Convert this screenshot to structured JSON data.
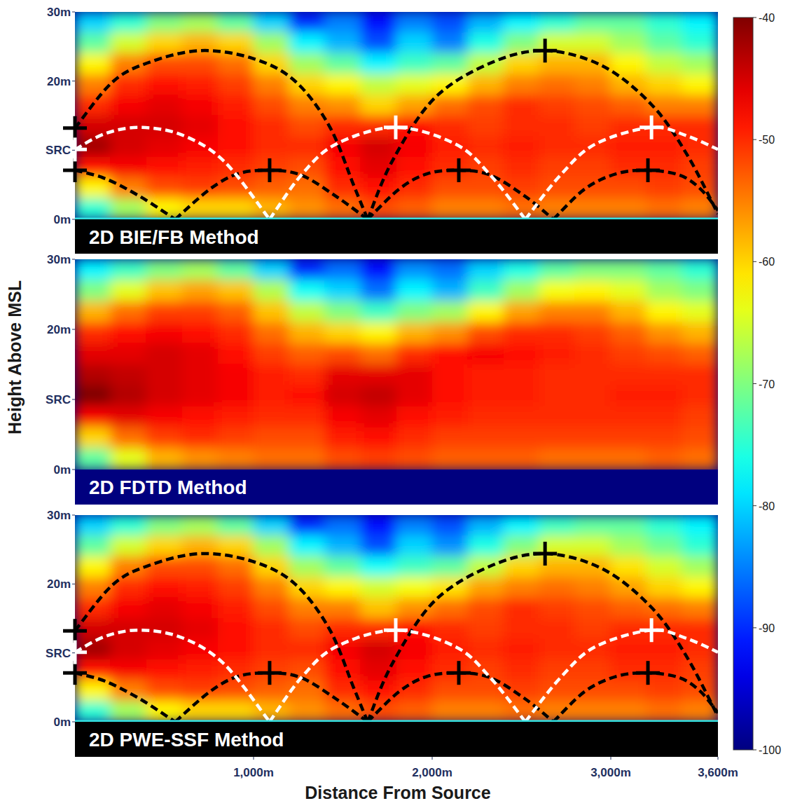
{
  "chart_data": [
    {
      "type": "heatmap",
      "title": "2D BIE/FB Method",
      "xlim": [
        0,
        3600
      ],
      "ylim": [
        0,
        30
      ],
      "tick_labels": "y",
      "yticks": [
        {
          "value": 0,
          "label": "0m"
        },
        {
          "value": 10,
          "label": "SRC"
        },
        {
          "value": 20,
          "label": "20m"
        },
        {
          "value": 30,
          "label": "30m"
        }
      ],
      "x": [
        100,
        300,
        500,
        700,
        900,
        1100,
        1300,
        1500,
        1700,
        1900,
        2100,
        2300,
        2500,
        2700,
        2900,
        3100,
        3300,
        3500
      ],
      "y": [
        28.5,
        25.5,
        22.5,
        19.5,
        16.5,
        13.5,
        10.5,
        7.5,
        4.5,
        1.5
      ],
      "cells": [
        [
          -80,
          -75,
          -70,
          -68,
          -72,
          -80,
          -90,
          -85,
          -92,
          -85,
          -88,
          -82,
          -78,
          -75,
          -72,
          -72,
          -75,
          -78
        ],
        [
          -72,
          -65,
          -60,
          -58,
          -60,
          -68,
          -78,
          -82,
          -88,
          -80,
          -85,
          -76,
          -70,
          -65,
          -65,
          -68,
          -72,
          -75
        ],
        [
          -62,
          -55,
          -52,
          -52,
          -54,
          -60,
          -68,
          -72,
          -78,
          -74,
          -72,
          -66,
          -60,
          -58,
          -58,
          -62,
          -66,
          -68
        ],
        [
          -55,
          -50,
          -48,
          -49,
          -51,
          -55,
          -60,
          -62,
          -66,
          -64,
          -62,
          -58,
          -55,
          -54,
          -55,
          -58,
          -60,
          -62
        ],
        [
          -50,
          -47,
          -46,
          -47,
          -49,
          -52,
          -55,
          -56,
          -60,
          -57,
          -54,
          -52,
          -50,
          -51,
          -52,
          -53,
          -55,
          -55
        ],
        [
          -45,
          -45,
          -45,
          -46,
          -48,
          -50,
          -52,
          -50,
          -50,
          -48,
          -50,
          -51,
          -50,
          -50,
          -51,
          -50,
          -50,
          -50
        ],
        [
          -42,
          -45,
          -46,
          -47,
          -48,
          -50,
          -50,
          -47,
          -45,
          -47,
          -49,
          -50,
          -49,
          -50,
          -50,
          -49,
          -49,
          -50
        ],
        [
          -48,
          -47,
          -48,
          -49,
          -50,
          -51,
          -52,
          -48,
          -46,
          -48,
          -50,
          -51,
          -50,
          -51,
          -51,
          -50,
          -50,
          -51
        ],
        [
          -62,
          -55,
          -52,
          -51,
          -52,
          -53,
          -54,
          -50,
          -48,
          -50,
          -52,
          -52,
          -51,
          -52,
          -52,
          -52,
          -51,
          -52
        ],
        [
          -75,
          -68,
          -62,
          -60,
          -60,
          -58,
          -56,
          -54,
          -52,
          -53,
          -55,
          -55,
          -54,
          -55,
          -55,
          -55,
          -54,
          -55
        ]
      ],
      "rays": [
        {
          "color": "#000000",
          "x": [
            0,
            208,
            404,
            698,
            992,
            1228,
            1424,
            1561,
            1639
          ],
          "y": [
            13.2,
            19.8,
            22.6,
            24.4,
            23.3,
            20.1,
            13.5,
            4.9,
            0
          ]
        },
        {
          "color": "#000000",
          "x": [
            1639,
            1776,
            2012,
            2326,
            2632,
            2953,
            3228,
            3424,
            3600
          ],
          "y": [
            0,
            8.4,
            17.5,
            22.6,
            24.4,
            22.2,
            16.6,
            9.5,
            0.8
          ]
        },
        {
          "color": "#000000",
          "x": [
            0,
            169,
            365,
            561
          ],
          "y": [
            7.1,
            5.9,
            3.3,
            0
          ]
        },
        {
          "color": "#000000",
          "x": [
            561,
            757,
            914,
            1090,
            1267,
            1463,
            1639
          ],
          "y": [
            0,
            4.4,
            6.6,
            7.1,
            6.4,
            3.3,
            0
          ]
        },
        {
          "color": "#000000",
          "x": [
            1639,
            1816,
            1973,
            2149,
            2326,
            2522,
            2679
          ],
          "y": [
            0,
            4.4,
            6.6,
            7.1,
            6.4,
            3.3,
            0
          ]
        },
        {
          "color": "#000000",
          "x": [
            2679,
            2855,
            3032,
            3208,
            3385,
            3502,
            3600
          ],
          "y": [
            0,
            4.4,
            6.6,
            7.1,
            6.4,
            4.4,
            1.3
          ]
        },
        {
          "color": "#ffffff",
          "x": [
            0,
            169,
            365,
            600,
            835,
            1090
          ],
          "y": [
            10.1,
            12.4,
            13.3,
            12.2,
            8.4,
            0
          ]
        },
        {
          "color": "#ffffff",
          "x": [
            1090,
            1267,
            1463,
            1796,
            2130,
            2326,
            2522
          ],
          "y": [
            0,
            6.4,
            10.9,
            13.3,
            10.9,
            6.4,
            0
          ]
        },
        {
          "color": "#ffffff",
          "x": [
            2522,
            2718,
            2914,
            3228,
            3424,
            3600
          ],
          "y": [
            0,
            6.4,
            10.9,
            13.3,
            12.1,
            10.1
          ]
        }
      ],
      "crosses": {
        "x": [
          0,
          0,
          2632,
          1090,
          2149,
          3208,
          0,
          1796,
          3228
        ],
        "y": [
          13.2,
          7.1,
          24.4,
          7.1,
          7.1,
          7.1,
          10.1,
          13.3,
          13.3
        ],
        "colors": [
          "#000000",
          "#000000",
          "#000000",
          "#000000",
          "#000000",
          "#000000",
          "#ffffff",
          "#ffffff",
          "#ffffff"
        ]
      }
    },
    {
      "type": "heatmap",
      "title": "2D FDTD Method",
      "ylabel": "Height Above MSL",
      "xlim": [
        0,
        3600
      ],
      "ylim": [
        0,
        30
      ],
      "tick_labels": "y",
      "yticks": [
        {
          "value": 0,
          "label": "0m"
        },
        {
          "value": 10,
          "label": "SRC"
        },
        {
          "value": 20,
          "label": "20m"
        },
        {
          "value": 30,
          "label": "30m"
        }
      ],
      "x": [
        100,
        300,
        500,
        700,
        900,
        1100,
        1300,
        1500,
        1700,
        1900,
        2100,
        2300,
        2500,
        2700,
        2900,
        3100,
        3300,
        3500
      ],
      "y": [
        28.5,
        25.5,
        22.5,
        19.5,
        16.5,
        13.5,
        10.5,
        7.5,
        4.5,
        1.5
      ],
      "cells": [
        [
          -78,
          -74,
          -70,
          -68,
          -72,
          -80,
          -90,
          -86,
          -92,
          -84,
          -86,
          -80,
          -76,
          -72,
          -70,
          -70,
          -72,
          -75
        ],
        [
          -70,
          -64,
          -59,
          -57,
          -59,
          -67,
          -77,
          -80,
          -86,
          -78,
          -82,
          -74,
          -68,
          -63,
          -62,
          -64,
          -68,
          -70
        ],
        [
          -58,
          -54,
          -51,
          -51,
          -53,
          -59,
          -66,
          -70,
          -74,
          -70,
          -68,
          -62,
          -57,
          -55,
          -55,
          -58,
          -62,
          -64
        ],
        [
          -50,
          -48,
          -47,
          -48,
          -50,
          -54,
          -58,
          -60,
          -62,
          -58,
          -56,
          -52,
          -50,
          -50,
          -51,
          -53,
          -56,
          -58
        ],
        [
          -46,
          -46,
          -45,
          -46,
          -48,
          -51,
          -53,
          -52,
          -54,
          -50,
          -48,
          -47,
          -48,
          -49,
          -50,
          -51,
          -52,
          -53
        ],
        [
          -43,
          -44,
          -45,
          -46,
          -47,
          -49,
          -50,
          -46,
          -46,
          -46,
          -48,
          -49,
          -49,
          -50,
          -50,
          -50,
          -50,
          -50
        ],
        [
          -40,
          -43,
          -45,
          -46,
          -47,
          -49,
          -48,
          -45,
          -44,
          -46,
          -48,
          -49,
          -49,
          -50,
          -50,
          -49,
          -49,
          -50
        ],
        [
          -47,
          -46,
          -47,
          -48,
          -49,
          -50,
          -50,
          -47,
          -46,
          -48,
          -49,
          -50,
          -50,
          -50,
          -50,
          -50,
          -50,
          -51
        ],
        [
          -60,
          -54,
          -51,
          -50,
          -51,
          -52,
          -52,
          -49,
          -48,
          -50,
          -51,
          -51,
          -51,
          -51,
          -51,
          -51,
          -51,
          -52
        ],
        [
          -72,
          -64,
          -58,
          -56,
          -55,
          -54,
          -54,
          -52,
          -51,
          -52,
          -53,
          -53,
          -53,
          -54,
          -54,
          -54,
          -53,
          -54
        ]
      ]
    },
    {
      "type": "heatmap",
      "title": "2D PWE-SSF Method",
      "xlabel": "Distance From Source",
      "xlim": [
        0,
        3600
      ],
      "ylim": [
        0,
        30
      ],
      "tick_labels": true,
      "xticks": [
        {
          "value": 1000,
          "label": "1,000m"
        },
        {
          "value": 2000,
          "label": "2,000m"
        },
        {
          "value": 3000,
          "label": "3,000m"
        },
        {
          "value": 3600,
          "label": "3,600m"
        }
      ],
      "yticks": [
        {
          "value": 0,
          "label": "0m"
        },
        {
          "value": 10,
          "label": "SRC"
        },
        {
          "value": 20,
          "label": "20m"
        },
        {
          "value": 30,
          "label": "30m"
        }
      ],
      "x": [
        100,
        300,
        500,
        700,
        900,
        1100,
        1300,
        1500,
        1700,
        1900,
        2100,
        2300,
        2500,
        2700,
        2900,
        3100,
        3300,
        3500
      ],
      "y": [
        28.5,
        25.5,
        22.5,
        19.5,
        16.5,
        13.5,
        10.5,
        7.5,
        4.5,
        1.5
      ],
      "cells": [
        [
          -80,
          -75,
          -70,
          -68,
          -72,
          -80,
          -90,
          -86,
          -92,
          -85,
          -88,
          -82,
          -78,
          -74,
          -72,
          -72,
          -75,
          -78
        ],
        [
          -72,
          -65,
          -60,
          -58,
          -60,
          -68,
          -78,
          -82,
          -88,
          -80,
          -84,
          -76,
          -70,
          -65,
          -65,
          -68,
          -71,
          -75
        ],
        [
          -62,
          -55,
          -52,
          -52,
          -54,
          -60,
          -68,
          -72,
          -77,
          -74,
          -72,
          -66,
          -60,
          -58,
          -58,
          -61,
          -65,
          -68
        ],
        [
          -55,
          -50,
          -48,
          -49,
          -51,
          -55,
          -60,
          -62,
          -65,
          -63,
          -61,
          -57,
          -55,
          -54,
          -55,
          -57,
          -60,
          -62
        ],
        [
          -50,
          -47,
          -46,
          -47,
          -49,
          -52,
          -55,
          -55,
          -59,
          -56,
          -54,
          -52,
          -50,
          -51,
          -52,
          -53,
          -54,
          -55
        ],
        [
          -45,
          -45,
          -45,
          -46,
          -48,
          -50,
          -52,
          -50,
          -50,
          -48,
          -50,
          -51,
          -50,
          -50,
          -51,
          -50,
          -50,
          -50
        ],
        [
          -42,
          -45,
          -46,
          -47,
          -48,
          -50,
          -50,
          -47,
          -45,
          -47,
          -49,
          -50,
          -49,
          -50,
          -50,
          -49,
          -49,
          -50
        ],
        [
          -48,
          -47,
          -48,
          -49,
          -50,
          -51,
          -52,
          -48,
          -46,
          -48,
          -50,
          -51,
          -50,
          -51,
          -51,
          -50,
          -50,
          -51
        ],
        [
          -62,
          -55,
          -52,
          -51,
          -52,
          -53,
          -54,
          -50,
          -48,
          -50,
          -52,
          -52,
          -51,
          -52,
          -52,
          -52,
          -51,
          -52
        ],
        [
          -75,
          -68,
          -62,
          -60,
          -60,
          -58,
          -56,
          -54,
          -52,
          -53,
          -55,
          -55,
          -54,
          -55,
          -55,
          -55,
          -54,
          -55
        ]
      ],
      "rays": [
        {
          "color": "#000000",
          "x": [
            0,
            208,
            404,
            698,
            992,
            1228,
            1424,
            1561,
            1639
          ],
          "y": [
            13.2,
            19.8,
            22.6,
            24.4,
            23.3,
            20.1,
            13.5,
            4.9,
            0
          ]
        },
        {
          "color": "#000000",
          "x": [
            1639,
            1776,
            2012,
            2326,
            2632,
            2953,
            3228,
            3424,
            3600
          ],
          "y": [
            0,
            8.4,
            17.5,
            22.6,
            24.4,
            22.2,
            16.6,
            9.5,
            0.8
          ]
        },
        {
          "color": "#000000",
          "x": [
            0,
            169,
            365,
            561
          ],
          "y": [
            7.1,
            5.9,
            3.3,
            0
          ]
        },
        {
          "color": "#000000",
          "x": [
            561,
            757,
            914,
            1090,
            1267,
            1463,
            1639
          ],
          "y": [
            0,
            4.4,
            6.6,
            7.1,
            6.4,
            3.3,
            0
          ]
        },
        {
          "color": "#000000",
          "x": [
            1639,
            1816,
            1973,
            2149,
            2326,
            2522,
            2679
          ],
          "y": [
            0,
            4.4,
            6.6,
            7.1,
            6.4,
            3.3,
            0
          ]
        },
        {
          "color": "#000000",
          "x": [
            2679,
            2855,
            3032,
            3208,
            3385,
            3502,
            3600
          ],
          "y": [
            0,
            4.4,
            6.6,
            7.1,
            6.4,
            4.4,
            1.3
          ]
        },
        {
          "color": "#ffffff",
          "x": [
            0,
            169,
            365,
            600,
            835,
            1090
          ],
          "y": [
            10.1,
            12.4,
            13.3,
            12.2,
            8.4,
            0
          ]
        },
        {
          "color": "#ffffff",
          "x": [
            1090,
            1267,
            1463,
            1796,
            2130,
            2326,
            2522
          ],
          "y": [
            0,
            6.4,
            10.9,
            13.3,
            10.9,
            6.4,
            0
          ]
        },
        {
          "color": "#ffffff",
          "x": [
            2522,
            2718,
            2914,
            3228,
            3424,
            3600
          ],
          "y": [
            0,
            6.4,
            10.9,
            13.3,
            12.1,
            10.1
          ]
        }
      ],
      "crosses": {
        "x": [
          0,
          0,
          2632,
          1090,
          2149,
          3208,
          0,
          1796,
          3228
        ],
        "y": [
          13.2,
          7.1,
          24.4,
          7.1,
          7.1,
          7.1,
          10.1,
          13.3,
          13.3
        ],
        "colors": [
          "#000000",
          "#000000",
          "#000000",
          "#000000",
          "#000000",
          "#000000",
          "#ffffff",
          "#ffffff",
          "#ffffff"
        ]
      },
      "colorbar": {
        "range": [
          -100,
          -40
        ],
        "ticks": [
          -40,
          -50,
          -60,
          -70,
          -80,
          -90,
          -100
        ]
      }
    }
  ]
}
